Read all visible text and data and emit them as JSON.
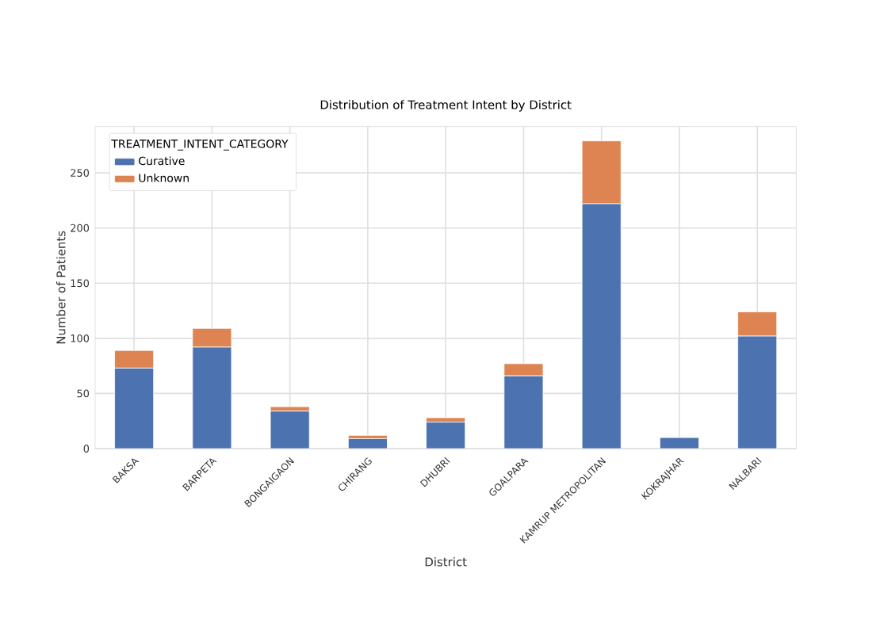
{
  "chart_data": {
    "type": "bar",
    "stacked": true,
    "title": "Distribution of Treatment Intent by District",
    "xlabel": "District",
    "ylabel": "Number of Patients",
    "legend_title": "TREATMENT_INTENT_CATEGORY",
    "categories": [
      "BAKSA",
      "BARPETA",
      "BONGAIGAON",
      "CHIRANG",
      "DHUBRI",
      "GOALPARA",
      "KAMRUP METROPOLITAN",
      "KOKRAJHAR",
      "NALBARI"
    ],
    "series": [
      {
        "name": "Curative",
        "color": "#4c72b0",
        "values": [
          73,
          92,
          34,
          9,
          24,
          66,
          222,
          10,
          102
        ]
      },
      {
        "name": "Unknown",
        "color": "#dd8452",
        "values": [
          16,
          17,
          4,
          3,
          4,
          11,
          57,
          0,
          22
        ]
      }
    ],
    "ylim": [
      0,
      292
    ],
    "yticks": [
      0,
      50,
      100,
      150,
      200,
      250
    ],
    "grid": true,
    "legend": "top left"
  }
}
